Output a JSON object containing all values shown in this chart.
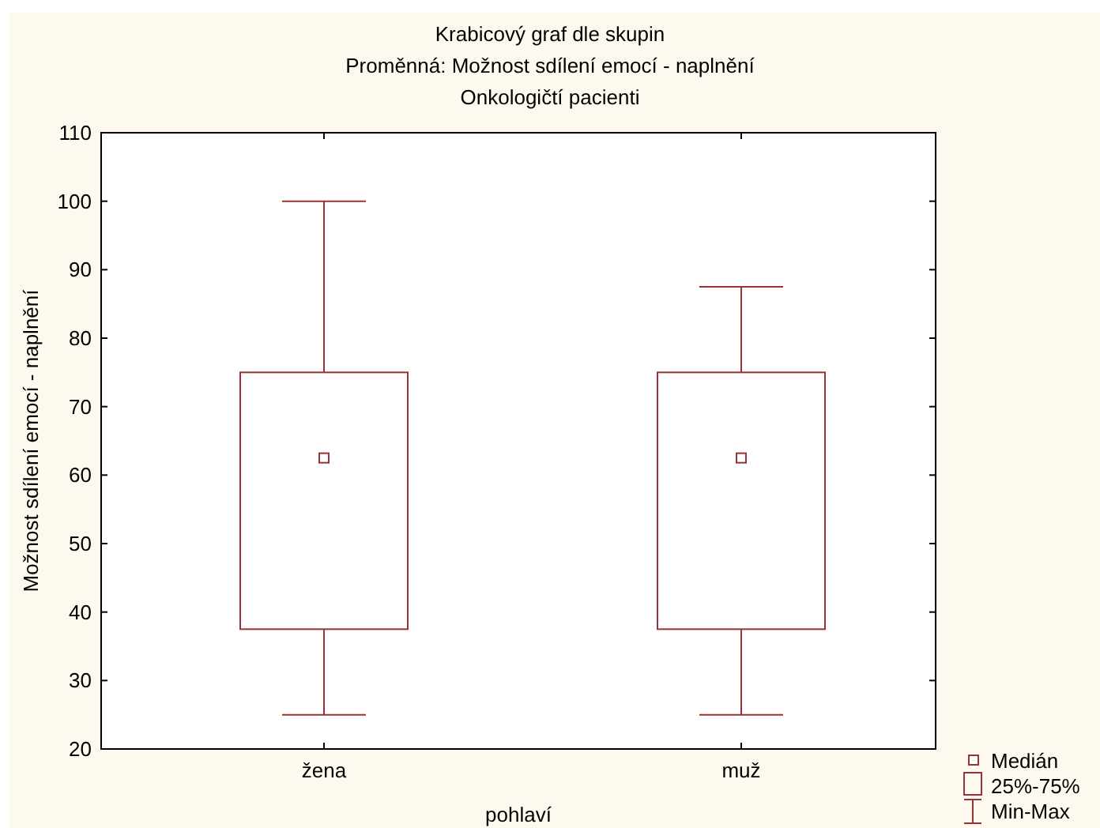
{
  "chart_data": {
    "type": "box",
    "title": "Krabicový graf dle skupin",
    "subtitle": "Proměnná: Možnost sdílení emocí - naplnění\nOnkologičtí pacienti",
    "xlabel": "pohlaví",
    "ylabel": "Možnost sdílení emocí - naplnění",
    "categories": [
      "žena",
      "muž"
    ],
    "color": "#993333",
    "boxes": [
      {
        "low": 25,
        "q1": 37.5,
        "median": 62.5,
        "q3": 75,
        "high": 100
      },
      {
        "low": 25,
        "q1": 37.5,
        "median": 62.5,
        "q3": 75,
        "high": 87.5
      }
    ],
    "ylim": [
      20,
      110
    ],
    "yticks": [
      20,
      30,
      40,
      50,
      60,
      70,
      80,
      90,
      100,
      110
    ],
    "grid": false,
    "annotations": [
      "Medián",
      "25%-75%",
      "Min-Max"
    ]
  }
}
